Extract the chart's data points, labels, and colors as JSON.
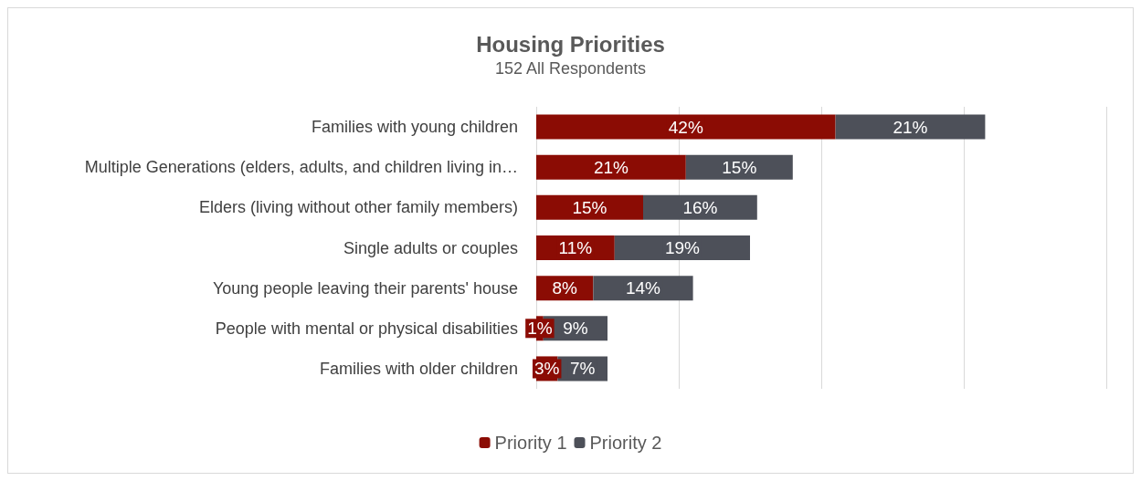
{
  "chart_data": {
    "type": "bar",
    "orientation": "horizontal",
    "stacked": true,
    "title": "Housing Priorities",
    "subtitle": "152 All Respondents",
    "categories": [
      "Families with young children",
      "Multiple Generations (elders, adults, and children living in…",
      "Elders (living without other family members)",
      "Single adults or couples",
      "Young people leaving their parents' house",
      "People with mental or physical disabilities",
      "Families with older children"
    ],
    "series": [
      {
        "name": "Priority 1",
        "color": "#8b0c04",
        "values": [
          42,
          21,
          15,
          11,
          8,
          1,
          3
        ],
        "value_labels": [
          "42%",
          "21%",
          "15%",
          "11%",
          "8%",
          "1%",
          "3%"
        ]
      },
      {
        "name": "Priority 2",
        "color": "#4d5059",
        "values": [
          21,
          15,
          16,
          19,
          14,
          9,
          7
        ],
        "value_labels": [
          "21%",
          "15%",
          "16%",
          "19%",
          "14%",
          "9%",
          "7%"
        ]
      }
    ],
    "grid": "x",
    "tick_labels": "y",
    "legend": "bottom"
  }
}
